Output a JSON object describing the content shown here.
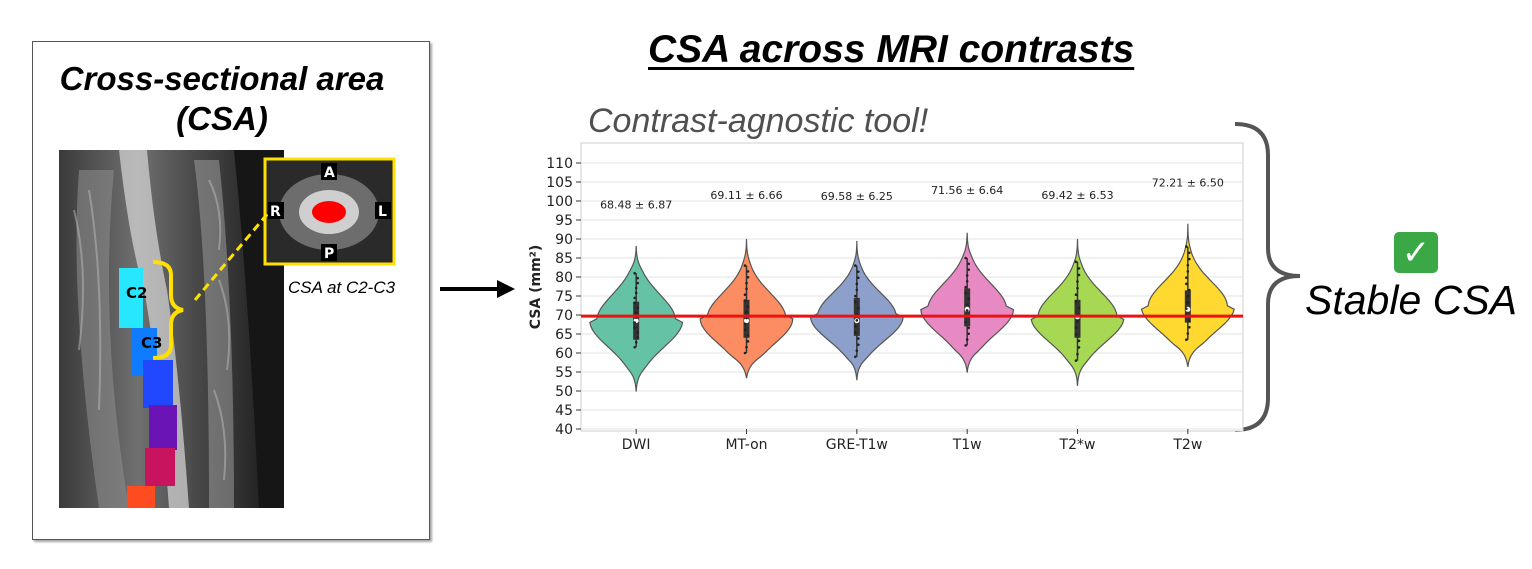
{
  "panel": {
    "title_line1": "Cross-sectional area",
    "title_line2": "(CSA)",
    "levels": [
      "C2",
      "C3"
    ],
    "inset_directions": {
      "anterior": "A",
      "posterior": "P",
      "right": "R",
      "left": "L"
    },
    "csa_label": "CSA at C2-C3",
    "segment_colors": [
      "#27e7ff",
      "#0f7cff",
      "#2248ff",
      "#6a14b6",
      "#c8145e",
      "#ff4b20"
    ]
  },
  "main_title": "CSA across MRI contrasts",
  "subtitle": "Contrast-agnostic tool!",
  "conclusion": {
    "icon": "check-mark-icon",
    "text": "Stable CSA"
  },
  "chart_data": {
    "type": "violin",
    "ylabel": "CSA (mm²)",
    "ylim": [
      40,
      110
    ],
    "yticks": [
      40,
      45,
      50,
      55,
      60,
      65,
      70,
      75,
      80,
      85,
      90,
      95,
      100,
      105,
      110
    ],
    "grid": true,
    "categories": [
      "DWI",
      "MT-on",
      "GRE-T1w",
      "T1w",
      "T2*w",
      "T2w"
    ],
    "colors": [
      "#66c2a5",
      "#fc8d62",
      "#8da0cb",
      "#e78ac3",
      "#a6d854",
      "#ffd92f"
    ],
    "means": [
      68.48,
      69.11,
      69.58,
      71.56,
      69.42,
      72.21
    ],
    "stds": [
      6.87,
      6.66,
      6.25,
      6.64,
      6.53,
      6.5
    ],
    "annotations": [
      "68.48 ± 6.87",
      "69.11 ± 6.66",
      "69.58 ± 6.25",
      "71.56 ± 6.64",
      "69.42 ± 6.53",
      "72.21 ± 6.50"
    ],
    "annotation_y": [
      98,
      100.5,
      100.3,
      101.8,
      100.5,
      103.8
    ],
    "violin_range": [
      [
        50,
        88
      ],
      [
        53.5,
        90
      ],
      [
        53,
        89.5
      ],
      [
        55,
        91.5
      ],
      [
        51.5,
        90
      ],
      [
        56.5,
        94
      ]
    ],
    "whiskers": [
      [
        61.5,
        81
      ],
      [
        60,
        83
      ],
      [
        59,
        83
      ],
      [
        62,
        85
      ],
      [
        58,
        84
      ],
      [
        63.5,
        88
      ]
    ],
    "iqr": [
      [
        63.5,
        73.5
      ],
      [
        64,
        74
      ],
      [
        64.5,
        74.5
      ],
      [
        67,
        77
      ],
      [
        64,
        74
      ],
      [
        68,
        76.5
      ]
    ],
    "medians": [
      68.5,
      68.5,
      68.5,
      71.5,
      69.5,
      71.5
    ],
    "reference_line": 69.7,
    "reference_color": "#ee1111"
  }
}
